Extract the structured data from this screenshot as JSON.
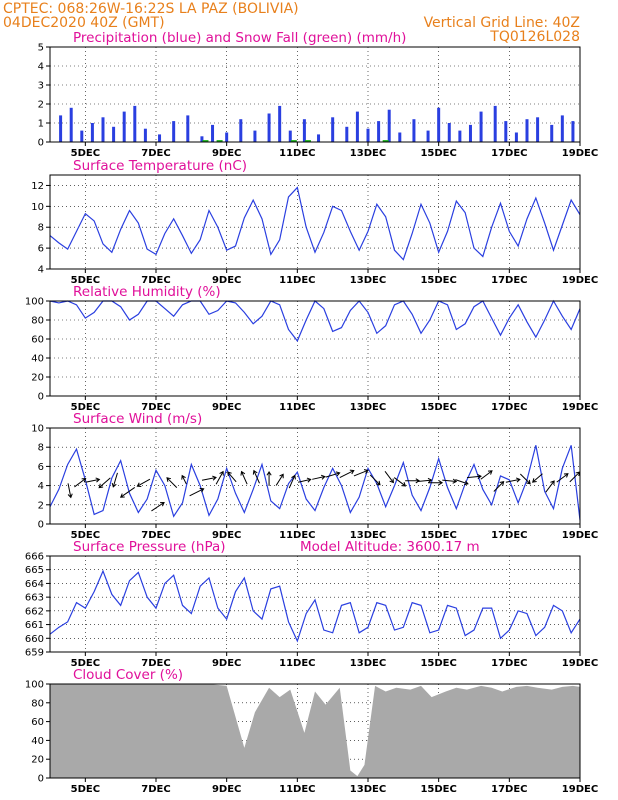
{
  "header": {
    "line1": "CPTEC:   068:26W-16:22S   LA PAZ (BOLIVIA)",
    "line2": "04DEC2020 40Z (GMT)",
    "grid_note": "Vertical Grid Line: 40Z",
    "code": "TQ0126L028"
  },
  "colors": {
    "header": "#e8801c",
    "title": "#e0109a",
    "line": "#2a3fe0",
    "snow": "#19b019",
    "cloud": "#a9a9a9",
    "grid": "#000000"
  },
  "chart_data": [
    {
      "type": "bar",
      "title": "Precipitation (blue) and Snow Fall (green) (mm/h)",
      "ylim": [
        0,
        5
      ],
      "yticks": [
        0,
        1,
        2,
        3,
        4,
        5
      ],
      "grid": "dotted",
      "x_ticks": [
        "5DEC",
        "7DEC",
        "9DEC",
        "11DEC",
        "13DEC",
        "15DEC",
        "17DEC",
        "19DEC"
      ],
      "series": [
        {
          "name": "Precipitation",
          "x": [
            4.3,
            4.6,
            4.9,
            5.2,
            5.5,
            5.8,
            6.1,
            6.4,
            6.7,
            7.1,
            7.5,
            7.9,
            8.3,
            8.6,
            9.0,
            9.4,
            9.8,
            10.2,
            10.5,
            10.8,
            11.2,
            11.6,
            12.0,
            12.4,
            12.7,
            13.0,
            13.3,
            13.6,
            13.9,
            14.3,
            14.7,
            15.0,
            15.3,
            15.6,
            15.9,
            16.2,
            16.6,
            16.9,
            17.2,
            17.5,
            17.8,
            18.2,
            18.5,
            18.8
          ],
          "values": [
            1.4,
            1.8,
            0.6,
            1.0,
            1.3,
            0.8,
            1.6,
            1.9,
            0.7,
            0.4,
            1.1,
            1.4,
            0.3,
            0.9,
            0.5,
            1.2,
            0.6,
            1.5,
            1.9,
            0.6,
            1.2,
            0.4,
            1.3,
            0.8,
            1.6,
            0.7,
            1.1,
            1.7,
            0.5,
            1.2,
            0.6,
            1.8,
            1.0,
            0.6,
            0.9,
            1.6,
            1.9,
            1.1,
            0.5,
            1.2,
            1.3,
            0.9,
            1.4,
            1.1
          ]
        },
        {
          "name": "Snow Fall",
          "x": [
            8.4,
            8.8,
            10.9,
            11.3,
            13.5
          ],
          "values": [
            0.1,
            0.1,
            0.1,
            0.1,
            0.1
          ]
        }
      ]
    },
    {
      "type": "line",
      "title": "Surface Temperature (nC)",
      "ylim": [
        4,
        13
      ],
      "yticks": [
        4,
        6,
        8,
        10,
        12
      ],
      "grid": "dotted",
      "x_ticks": [
        "5DEC",
        "7DEC",
        "9DEC",
        "11DEC",
        "13DEC",
        "15DEC",
        "17DEC",
        "19DEC"
      ],
      "series": [
        {
          "name": "",
          "x": [
            4.0,
            4.25,
            4.5,
            4.75,
            5.0,
            5.25,
            5.5,
            5.75,
            6.0,
            6.25,
            6.5,
            6.75,
            7.0,
            7.25,
            7.5,
            7.75,
            8.0,
            8.25,
            8.5,
            8.75,
            9.0,
            9.25,
            9.5,
            9.75,
            10.0,
            10.25,
            10.5,
            10.75,
            11.0,
            11.25,
            11.5,
            11.75,
            12.0,
            12.25,
            12.5,
            12.75,
            13.0,
            13.25,
            13.5,
            13.75,
            14.0,
            14.25,
            14.5,
            14.75,
            15.0,
            15.25,
            15.5,
            15.75,
            16.0,
            16.25,
            16.5,
            16.75,
            17.0,
            17.25,
            17.5,
            17.75,
            18.0,
            18.25,
            18.5,
            18.75,
            19.0
          ],
          "values": [
            7.2,
            6.5,
            5.9,
            7.6,
            9.3,
            8.6,
            6.4,
            5.6,
            7.8,
            9.6,
            8.4,
            5.9,
            5.4,
            7.4,
            8.8,
            7.2,
            5.5,
            6.8,
            9.6,
            8.0,
            5.8,
            6.2,
            8.9,
            10.6,
            8.8,
            5.4,
            6.8,
            10.9,
            11.8,
            8.0,
            5.6,
            7.5,
            10.0,
            9.6,
            7.6,
            5.8,
            7.6,
            10.2,
            9.0,
            5.8,
            4.9,
            7.4,
            10.2,
            8.4,
            5.6,
            7.6,
            10.5,
            9.4,
            6.0,
            5.2,
            8.0,
            10.3,
            7.6,
            6.2,
            8.8,
            10.8,
            8.4,
            5.8,
            8.2,
            10.6,
            9.2
          ]
        }
      ]
    },
    {
      "type": "line",
      "title": "Relative Humidity (%)",
      "ylim": [
        0,
        100
      ],
      "yticks": [
        0,
        20,
        40,
        60,
        80,
        100
      ],
      "grid": "dotted",
      "x_ticks": [
        "5DEC",
        "7DEC",
        "9DEC",
        "11DEC",
        "13DEC",
        "15DEC",
        "17DEC",
        "19DEC"
      ],
      "series": [
        {
          "name": "",
          "x": [
            4.0,
            4.25,
            4.5,
            4.75,
            5.0,
            5.25,
            5.5,
            5.75,
            6.0,
            6.25,
            6.5,
            6.75,
            7.0,
            7.25,
            7.5,
            7.75,
            8.0,
            8.25,
            8.5,
            8.75,
            9.0,
            9.25,
            9.5,
            9.75,
            10.0,
            10.25,
            10.5,
            10.75,
            11.0,
            11.25,
            11.5,
            11.75,
            12.0,
            12.25,
            12.5,
            12.75,
            13.0,
            13.25,
            13.5,
            13.75,
            14.0,
            14.25,
            14.5,
            14.75,
            15.0,
            15.25,
            15.5,
            15.75,
            16.0,
            16.25,
            16.5,
            16.75,
            17.0,
            17.25,
            17.5,
            17.75,
            18.0,
            18.25,
            18.5,
            18.75,
            19.0
          ],
          "values": [
            100,
            98,
            100,
            96,
            82,
            88,
            100,
            100,
            94,
            80,
            86,
            100,
            100,
            92,
            84,
            96,
            100,
            100,
            86,
            90,
            100,
            98,
            88,
            76,
            84,
            100,
            96,
            70,
            58,
            80,
            100,
            92,
            68,
            72,
            90,
            100,
            88,
            66,
            74,
            96,
            100,
            86,
            66,
            80,
            100,
            96,
            70,
            76,
            94,
            100,
            82,
            64,
            82,
            96,
            78,
            62,
            80,
            100,
            84,
            70,
            92
          ]
        }
      ]
    },
    {
      "type": "line",
      "title": "Surface Wind (m/s)",
      "ylim": [
        0,
        10
      ],
      "yticks": [
        0,
        2,
        4,
        6,
        8,
        10
      ],
      "grid": "dotted",
      "x_ticks": [
        "5DEC",
        "7DEC",
        "9DEC",
        "11DEC",
        "13DEC",
        "15DEC",
        "17DEC",
        "19DEC"
      ],
      "series": [
        {
          "name": "",
          "x": [
            4.0,
            4.25,
            4.5,
            4.75,
            5.0,
            5.25,
            5.5,
            5.75,
            6.0,
            6.25,
            6.5,
            6.75,
            7.0,
            7.25,
            7.5,
            7.75,
            8.0,
            8.25,
            8.5,
            8.75,
            9.0,
            9.25,
            9.5,
            9.75,
            10.0,
            10.25,
            10.5,
            10.75,
            11.0,
            11.25,
            11.5,
            11.75,
            12.0,
            12.25,
            12.5,
            12.75,
            13.0,
            13.25,
            13.5,
            13.75,
            14.0,
            14.25,
            14.5,
            14.75,
            15.0,
            15.25,
            15.5,
            15.75,
            16.0,
            16.25,
            16.5,
            16.75,
            17.0,
            17.25,
            17.5,
            17.75,
            18.0,
            18.25,
            18.5,
            18.75,
            19.0
          ],
          "values": [
            1.8,
            3.6,
            6.2,
            7.8,
            4.6,
            1.0,
            1.4,
            4.8,
            6.6,
            3.2,
            1.2,
            2.6,
            5.6,
            4.0,
            0.8,
            2.2,
            6.2,
            4.0,
            0.9,
            2.6,
            5.8,
            3.2,
            1.2,
            3.6,
            6.2,
            2.4,
            1.6,
            4.2,
            5.4,
            2.6,
            1.4,
            3.8,
            5.8,
            4.0,
            1.2,
            2.8,
            5.8,
            4.2,
            1.8,
            4.0,
            6.4,
            3.0,
            1.4,
            3.8,
            6.8,
            3.8,
            1.6,
            4.2,
            6.2,
            3.6,
            2.0,
            5.0,
            4.6,
            2.2,
            4.6,
            8.2,
            3.4,
            1.6,
            5.8,
            8.2,
            0.4
          ]
        },
        {
          "name": "",
          "x": [
            4.55,
            4.85,
            5.2,
            5.55,
            5.85,
            6.2,
            6.65,
            7.05,
            7.45,
            7.8,
            8.15,
            8.5,
            8.8,
            9.15,
            9.5,
            9.85,
            10.2,
            10.5,
            10.85,
            11.2,
            11.6,
            12.0,
            12.4,
            12.8,
            13.2,
            13.6,
            13.9,
            14.25,
            14.6,
            14.9,
            15.3,
            15.65,
            16.0,
            16.35,
            16.7,
            17.1,
            17.45,
            17.8,
            18.15,
            18.5,
            18.85
          ],
          "values": [
            3.5,
            4.3,
            4.5,
            4.3,
            4.6,
            3.3,
            4.3,
            1.8,
            4.3,
            4.6,
            3.3,
            4.7,
            4.8,
            4.9,
            4.8,
            4.9,
            4.7,
            4.6,
            4.4,
            4.5,
            4.8,
            5.1,
            5.2,
            5.3,
            4.6,
            4.9,
            4.4,
            4.5,
            4.5,
            4.3,
            4.5,
            4.4,
            4.9,
            5.1,
            3.9,
            4.5,
            4.7,
            4.8,
            3.9,
            4.8,
            4.9
          ],
          "u": [
            0.2,
            0.8,
            1.0,
            -0.8,
            -0.3,
            -1.0,
            -0.9,
            0.9,
            -0.7,
            -0.3,
            1.0,
            1.0,
            0.5,
            -0.6,
            -0.4,
            -0.4,
            0.0,
            0.5,
            0.4,
            0.9,
            0.9,
            1.0,
            1.0,
            1.0,
            0.7,
            0.6,
            0.8,
            1.0,
            1.0,
            1.0,
            1.0,
            0.9,
            1.0,
            0.8,
            0.7,
            1.0,
            0.7,
            -0.7,
            0.6,
            0.8,
            0.7
          ],
          "v": [
            -1.0,
            0.6,
            0.2,
            -0.7,
            -1.0,
            -0.7,
            -0.5,
            0.6,
            0.7,
            0.6,
            0.5,
            0.2,
            0.9,
            0.7,
            0.9,
            0.9,
            1.0,
            0.8,
            0.9,
            0.2,
            0.2,
            0.3,
            0.5,
            0.4,
            -0.7,
            -0.8,
            -0.6,
            0.0,
            0.1,
            0.0,
            -0.1,
            -0.3,
            0.1,
            0.6,
            0.7,
            0.2,
            -0.7,
            -0.6,
            0.8,
            0.6,
            0.7
          ]
        }
      ]
    },
    {
      "type": "line",
      "title": "Surface Pressure (hPa)",
      "annotation": "Model Altitude: 3600.17 m",
      "ylim": [
        659,
        666
      ],
      "yticks": [
        659,
        660,
        661,
        662,
        663,
        664,
        665,
        666
      ],
      "grid": "dotted",
      "x_ticks": [
        "5DEC",
        "7DEC",
        "9DEC",
        "11DEC",
        "13DEC",
        "15DEC",
        "17DEC",
        "19DEC"
      ],
      "series": [
        {
          "name": "",
          "x": [
            4.0,
            4.25,
            4.5,
            4.75,
            5.0,
            5.25,
            5.5,
            5.75,
            6.0,
            6.25,
            6.5,
            6.75,
            7.0,
            7.25,
            7.5,
            7.75,
            8.0,
            8.25,
            8.5,
            8.75,
            9.0,
            9.25,
            9.5,
            9.75,
            10.0,
            10.25,
            10.5,
            10.75,
            11.0,
            11.25,
            11.5,
            11.75,
            12.0,
            12.25,
            12.5,
            12.75,
            13.0,
            13.25,
            13.5,
            13.75,
            14.0,
            14.25,
            14.5,
            14.75,
            15.0,
            15.25,
            15.5,
            15.75,
            16.0,
            16.25,
            16.5,
            16.75,
            17.0,
            17.25,
            17.5,
            17.75,
            18.0,
            18.25,
            18.5,
            18.75,
            19.0
          ],
          "values": [
            660.3,
            660.8,
            661.2,
            662.6,
            662.2,
            663.4,
            664.9,
            663.2,
            662.4,
            664.2,
            664.8,
            663.0,
            662.2,
            664.0,
            664.6,
            662.4,
            661.8,
            663.8,
            664.4,
            662.2,
            661.4,
            663.4,
            664.4,
            662.0,
            661.4,
            663.6,
            663.8,
            661.2,
            659.8,
            661.8,
            662.8,
            660.6,
            660.4,
            662.4,
            662.6,
            660.4,
            660.8,
            662.6,
            662.4,
            660.6,
            660.8,
            662.6,
            662.4,
            660.4,
            660.6,
            662.4,
            662.2,
            660.2,
            660.6,
            662.2,
            662.2,
            660.0,
            660.6,
            662.0,
            661.8,
            660.2,
            660.8,
            662.4,
            662.0,
            660.4,
            661.4
          ]
        }
      ]
    },
    {
      "type": "bar",
      "title": "Cloud Cover (%)",
      "ylim": [
        0,
        100
      ],
      "yticks": [
        0,
        20,
        40,
        60,
        80,
        100
      ],
      "grid": "dotted",
      "x_ticks": [
        "5DEC",
        "7DEC",
        "9DEC",
        "11DEC",
        "13DEC",
        "15DEC",
        "17DEC",
        "19DEC"
      ],
      "x": [
        4.0,
        4.5,
        5.0,
        5.5,
        6.0,
        6.5,
        7.0,
        7.5,
        8.0,
        8.5,
        9.0,
        9.5,
        9.8,
        10.2,
        10.5,
        10.8,
        11.2,
        11.5,
        11.8,
        12.2,
        12.5,
        12.7,
        12.9,
        13.2,
        13.5,
        13.8,
        14.2,
        14.5,
        14.8,
        15.2,
        15.5,
        15.8,
        16.2,
        16.5,
        16.8,
        17.2,
        17.5,
        17.8,
        18.2,
        18.5,
        18.8,
        19.0
      ],
      "values": [
        100,
        100,
        100,
        100,
        100,
        100,
        100,
        100,
        100,
        100,
        98,
        32,
        70,
        96,
        86,
        94,
        48,
        92,
        78,
        96,
        8,
        2,
        14,
        98,
        92,
        96,
        94,
        98,
        86,
        92,
        96,
        94,
        98,
        96,
        92,
        97,
        98,
        96,
        94,
        97,
        98,
        97
      ]
    }
  ]
}
